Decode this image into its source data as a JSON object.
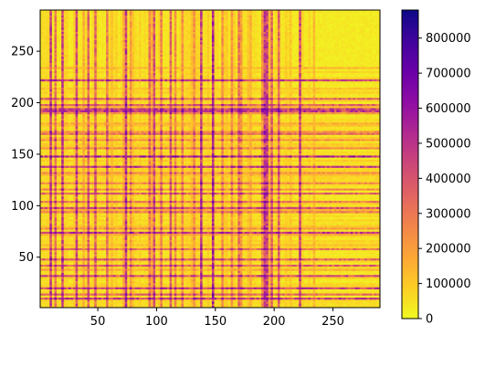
{
  "chart_data": {
    "type": "heatmap",
    "title": "",
    "xlabel": "",
    "ylabel": "",
    "xlim": [
      1,
      290
    ],
    "ylim": [
      1,
      290
    ],
    "x_ticks": [
      50,
      100,
      150,
      200,
      250
    ],
    "y_ticks": [
      50,
      100,
      150,
      200,
      250
    ],
    "x_tick_labels": [
      "50",
      "100",
      "150",
      "200",
      "250"
    ],
    "y_tick_labels": [
      "50",
      "100",
      "150",
      "200",
      "250"
    ],
    "colormap": "plasma_r",
    "colorbar": {
      "min": 0,
      "max": 880000,
      "ticks": [
        0,
        100000,
        200000,
        300000,
        400000,
        500000,
        600000,
        700000,
        800000
      ],
      "tick_labels": [
        "0",
        "100000",
        "200000",
        "300000",
        "400000",
        "500000",
        "600000",
        "700000",
        "800000"
      ]
    },
    "grid": false,
    "n": 290,
    "quiet_region_start": 235,
    "hot_indices": [
      4,
      9,
      13,
      19,
      24,
      28,
      31,
      36,
      41,
      44,
      47,
      52,
      57,
      60,
      64,
      68,
      73,
      77,
      78,
      84,
      88,
      93,
      97,
      103,
      106,
      111,
      115,
      121,
      126,
      131,
      137,
      142,
      147,
      152,
      158,
      163,
      169,
      174,
      178,
      184,
      188,
      191,
      193,
      197,
      203,
      208,
      214,
      221,
      226
    ],
    "value_description_scale": {
      "background": 30000,
      "medium_stripe": 250000,
      "strong_stripe": 500000,
      "peak": 880000
    }
  }
}
